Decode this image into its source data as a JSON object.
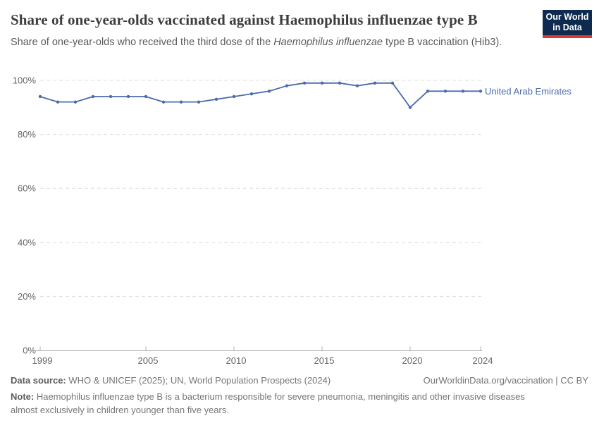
{
  "header": {
    "title": "Share of one-year-olds vaccinated against Haemophilus influenzae type B",
    "subtitle_prefix": "Share of one-year-olds who received the third dose of the ",
    "subtitle_italic": "Haemophilus influenzae",
    "subtitle_suffix": " type B vaccination (Hib3).",
    "logo": {
      "line1": "Our World",
      "line2": "in Data"
    }
  },
  "chart_data": {
    "type": "line",
    "x": [
      1999,
      2000,
      2001,
      2002,
      2003,
      2004,
      2005,
      2006,
      2007,
      2008,
      2009,
      2010,
      2011,
      2012,
      2013,
      2014,
      2015,
      2016,
      2017,
      2018,
      2019,
      2020,
      2021,
      2022,
      2023,
      2024
    ],
    "series": [
      {
        "name": "United Arab Emirates",
        "color": "#4c6bac",
        "values": [
          94,
          92,
          92,
          94,
          94,
          94,
          94,
          92,
          92,
          92,
          93,
          94,
          95,
          96,
          98,
          99,
          99,
          99,
          98,
          99,
          99,
          90,
          96,
          96,
          96,
          96
        ]
      }
    ],
    "title": "Share of one-year-olds vaccinated against Haemophilus influenzae type B",
    "xlabel": "",
    "ylabel": "",
    "xlim": [
      1999,
      2024
    ],
    "ylim": [
      0,
      100
    ],
    "x_ticks": [
      1999,
      2005,
      2010,
      2015,
      2020,
      2024
    ],
    "y_ticks": [
      0,
      20,
      40,
      60,
      80,
      100
    ],
    "y_tick_suffix": "%",
    "grid": "horizontal-dashed",
    "legend_position": "end-of-line-label",
    "colors": {
      "line": "#4c6bac",
      "grid": "#dcdcdc",
      "axis": "#b0b0b0",
      "tick_label": "#666666"
    }
  },
  "footer": {
    "source_label": "Data source:",
    "source_text": " WHO & UNICEF (2025); UN, World Population Prospects (2024)",
    "credit": "OurWorldinData.org/vaccination | CC BY",
    "note_label": "Note:",
    "note_text": " Haemophilus influenzae type B is a bacterium responsible for severe pneumonia, meningitis and other invasive diseases almost exclusively in children younger than five years."
  }
}
